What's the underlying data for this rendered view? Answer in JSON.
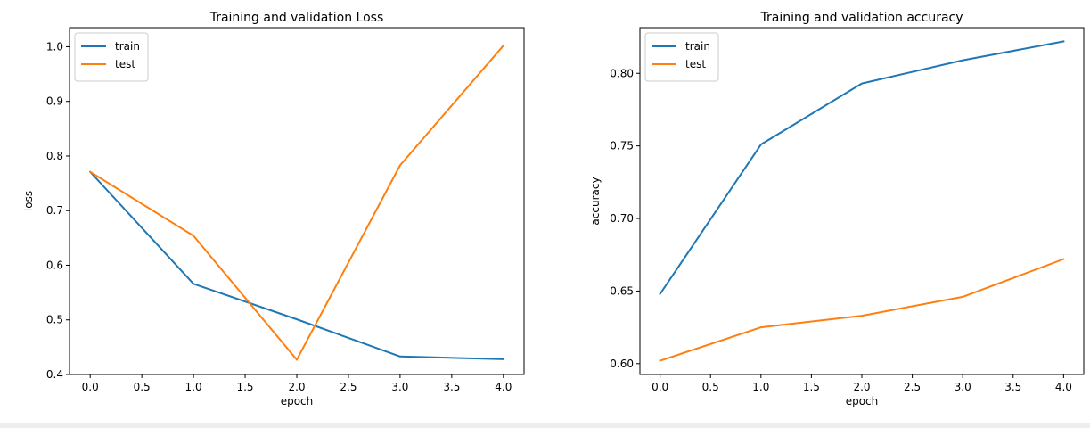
{
  "chart_data": [
    {
      "type": "line",
      "title": "Training and validation Loss",
      "xlabel": "epoch",
      "ylabel": "loss",
      "xlim": [
        -0.2,
        4.2
      ],
      "ylim": [
        0.4,
        1.035
      ],
      "xticks": [
        0.0,
        0.5,
        1.0,
        1.5,
        2.0,
        2.5,
        3.0,
        3.5,
        4.0
      ],
      "xtick_labels": [
        "0.0",
        "0.5",
        "1.0",
        "1.5",
        "2.0",
        "2.5",
        "3.0",
        "3.5",
        "4.0"
      ],
      "yticks": [
        0.4,
        0.5,
        0.6,
        0.7,
        0.8,
        0.9,
        1.0
      ],
      "ytick_labels": [
        "0.4",
        "0.5",
        "0.6",
        "0.7",
        "0.8",
        "0.9",
        "1.0"
      ],
      "grid": false,
      "legend_position": "top-left",
      "x": [
        0,
        1,
        2,
        3,
        4
      ],
      "series": [
        {
          "name": "train",
          "color": "#1f77b4",
          "values": [
            0.771,
            0.566,
            0.501,
            0.433,
            0.428
          ]
        },
        {
          "name": "test",
          "color": "#ff7f0e",
          "values": [
            0.771,
            0.654,
            0.427,
            0.783,
            1.002
          ]
        }
      ]
    },
    {
      "type": "line",
      "title": "Training and validation accuracy",
      "xlabel": "epoch",
      "ylabel": "accuracy",
      "xlim": [
        -0.2,
        4.2
      ],
      "ylim": [
        0.5925,
        0.8315
      ],
      "xticks": [
        0.0,
        0.5,
        1.0,
        1.5,
        2.0,
        2.5,
        3.0,
        3.5,
        4.0
      ],
      "xtick_labels": [
        "0.0",
        "0.5",
        "1.0",
        "1.5",
        "2.0",
        "2.5",
        "3.0",
        "3.5",
        "4.0"
      ],
      "yticks": [
        0.6,
        0.65,
        0.7,
        0.75,
        0.8
      ],
      "ytick_labels": [
        "0.60",
        "0.65",
        "0.70",
        "0.75",
        "0.80"
      ],
      "grid": false,
      "legend_position": "top-left",
      "x": [
        0,
        1,
        2,
        3,
        4
      ],
      "series": [
        {
          "name": "train",
          "color": "#1f77b4",
          "values": [
            0.648,
            0.751,
            0.793,
            0.809,
            0.822
          ]
        },
        {
          "name": "test",
          "color": "#ff7f0e",
          "values": [
            0.602,
            0.625,
            0.633,
            0.646,
            0.672
          ]
        }
      ]
    }
  ]
}
